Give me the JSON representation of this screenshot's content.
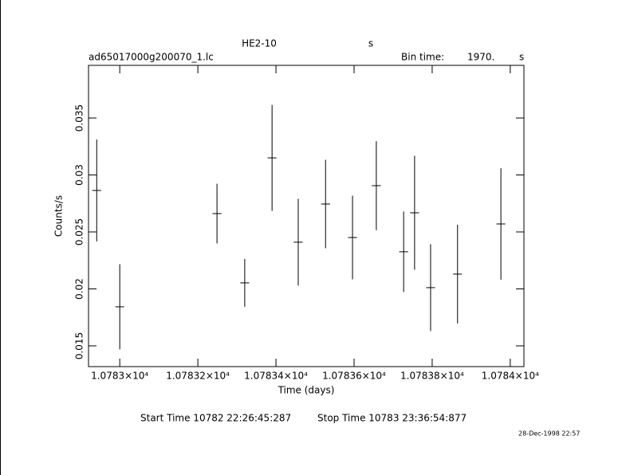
{
  "chart_data": {
    "type": "errorbar",
    "title": "HE2-10",
    "title_unit": "s",
    "file_name": "ad65017000g200070_1.lc",
    "bin_time_label": "Bin time:",
    "bin_time": "1970.",
    "bin_time_unit": "s",
    "xlabel": "Time (days)",
    "ylabel": "Counts/s",
    "start_time": "Start Time 10782 22:26:45:287",
    "stop_time": "Stop Time 10783 23:36:54:877",
    "timestamp": "28-Dec-1998 22:57",
    "color": "#000000",
    "x": [
      10782.941,
      10783.0,
      10783.249,
      10783.32,
      10783.39,
      10783.457,
      10783.527,
      10783.596,
      10783.657,
      10783.727,
      10783.755,
      10783.796,
      10783.865,
      10783.976
    ],
    "values": [
      0.02864,
      0.01843,
      0.02661,
      0.02053,
      0.0315,
      0.0241,
      0.02745,
      0.02451,
      0.02906,
      0.02326,
      0.02668,
      0.02011,
      0.0213,
      0.0257
    ],
    "errors": [
      0.00447,
      0.00374,
      0.00262,
      0.0021,
      0.00465,
      0.00381,
      0.00388,
      0.00367,
      0.00391,
      0.00353,
      0.005,
      0.00381,
      0.00433,
      0.00489
    ],
    "xerr": 0.0114,
    "xlim": [
      10782.92,
      10784.035
    ],
    "ylim": [
      0.01318,
      0.03962
    ],
    "xticks": [
      {
        "value": 10783,
        "label": "1.0783×10⁴"
      },
      {
        "value": 10783.2,
        "label": "1.07832×10⁴"
      },
      {
        "value": 10783.4,
        "label": "1.07834×10⁴"
      },
      {
        "value": 10783.6,
        "label": "1.07836×10⁴"
      },
      {
        "value": 10783.8,
        "label": "1.07838×10⁴"
      },
      {
        "value": 10784,
        "label": "1.0784×10⁴"
      }
    ],
    "yticks": [
      0.015,
      0.02,
      0.025,
      0.03,
      0.035
    ]
  }
}
